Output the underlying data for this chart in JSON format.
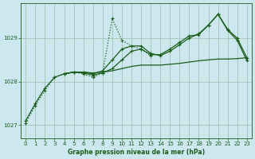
{
  "title": "Graphe pression niveau de la mer (hPa)",
  "bg_color": "#cce8ee",
  "grid_color": "#99bbaa",
  "line_color": "#1a5c1a",
  "xlim": [
    -0.5,
    23.5
  ],
  "ylim": [
    1026.7,
    1029.8
  ],
  "yticks": [
    1027,
    1028,
    1029
  ],
  "xticks": [
    0,
    1,
    2,
    3,
    4,
    5,
    6,
    7,
    8,
    9,
    10,
    11,
    12,
    13,
    14,
    15,
    16,
    17,
    18,
    19,
    20,
    21,
    22,
    23
  ],
  "series": [
    {
      "x": [
        0,
        1,
        2,
        3,
        4,
        5,
        6,
        7,
        8,
        9,
        10,
        11,
        12,
        13,
        14,
        15,
        16,
        17,
        18,
        19,
        20,
        21,
        22,
        23
      ],
      "y": [
        1027.1,
        1027.5,
        1027.85,
        1028.1,
        1028.18,
        1028.22,
        1028.22,
        1028.18,
        1028.25,
        1028.5,
        1028.75,
        1028.82,
        1028.82,
        1028.65,
        1028.6,
        1028.7,
        1028.85,
        1029.0,
        1029.1,
        1029.3,
        1029.55,
        1029.2,
        1029.0,
        1028.55
      ],
      "lw": 0.9,
      "ls": "-",
      "marker": "+"
    },
    {
      "x": [
        0,
        1,
        2,
        3,
        4,
        5,
        6,
        7,
        8,
        9,
        10,
        11,
        12,
        13
      ],
      "y": [
        1027.05,
        1027.45,
        1027.8,
        1028.1,
        1028.18,
        1028.22,
        1028.18,
        1028.1,
        1028.2,
        1029.45,
        1028.95,
        1028.82,
        1028.75,
        1028.6
      ],
      "lw": 0.9,
      "ls": ":",
      "marker": "+"
    },
    {
      "x": [
        4,
        5,
        6,
        7,
        8,
        9,
        10,
        11,
        12,
        13,
        14,
        15,
        16,
        17,
        18,
        19,
        20,
        21,
        22,
        23
      ],
      "y": [
        1028.18,
        1028.22,
        1028.2,
        1028.15,
        1028.2,
        1028.3,
        1028.5,
        1028.7,
        1028.75,
        1028.62,
        1028.62,
        1028.75,
        1028.9,
        1029.05,
        1029.08,
        1029.3,
        1029.55,
        1029.18,
        1028.95,
        1028.48
      ],
      "lw": 0.9,
      "ls": "-",
      "marker": "+"
    },
    {
      "x": [
        4,
        5,
        6,
        7,
        8,
        9,
        10,
        11,
        12,
        13,
        14,
        15,
        16,
        17,
        18,
        19,
        20,
        21,
        22,
        23
      ],
      "y": [
        1028.18,
        1028.22,
        1028.22,
        1028.2,
        1028.22,
        1028.25,
        1028.3,
        1028.35,
        1028.38,
        1028.38,
        1028.38,
        1028.4,
        1028.42,
        1028.45,
        1028.48,
        1028.5,
        1028.52,
        1028.52,
        1028.53,
        1028.55
      ],
      "lw": 0.9,
      "ls": "-",
      "marker": null
    }
  ]
}
